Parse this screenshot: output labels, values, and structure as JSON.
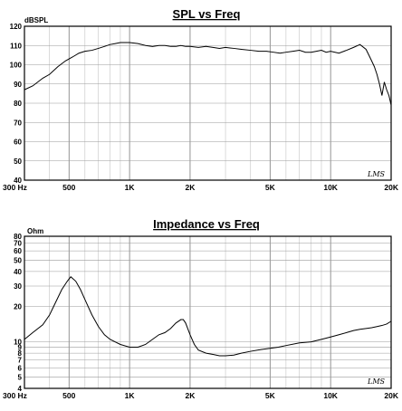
{
  "chart_data": [
    {
      "type": "line",
      "title": "SPL vs Freq",
      "ylabel": "dBSPL",
      "xlabel": "",
      "x_scale": "log",
      "xlim": [
        300,
        20000
      ],
      "ylim": [
        40,
        120
      ],
      "grid": true,
      "y_ticks": [
        40,
        50,
        60,
        70,
        80,
        90,
        100,
        110,
        120
      ],
      "x_tick_labels": [
        {
          "value": 300,
          "label": "300  Hz"
        },
        {
          "value": 500,
          "label": "500"
        },
        {
          "value": 1000,
          "label": "1K"
        },
        {
          "value": 2000,
          "label": "2K"
        },
        {
          "value": 5000,
          "label": "5K"
        },
        {
          "value": 10000,
          "label": "10K"
        },
        {
          "value": 20000,
          "label": "20K"
        }
      ],
      "watermark": "LMS",
      "series": [
        {
          "x": [
            300,
            330,
            370,
            400,
            440,
            480,
            520,
            560,
            600,
            650,
            700,
            750,
            800,
            850,
            900,
            950,
            1000,
            1100,
            1200,
            1300,
            1400,
            1500,
            1600,
            1700,
            1800,
            1900,
            2000,
            2200,
            2400,
            2600,
            2800,
            3000,
            3300,
            3600,
            4000,
            4400,
            4800,
            5200,
            5600,
            6000,
            6500,
            7000,
            7500,
            8000,
            8500,
            9000,
            9500,
            10000,
            11000,
            12000,
            13000,
            14000,
            15000,
            15500,
            16000,
            16500,
            17000,
            17500,
            18000,
            18500,
            19000,
            19500,
            20000
          ],
          "values": [
            87,
            89,
            93,
            95,
            99,
            102,
            104,
            106,
            107,
            107.5,
            108.5,
            109.5,
            110.5,
            111,
            111.5,
            111.5,
            111.5,
            111,
            110,
            109.5,
            110,
            110,
            109.5,
            109.5,
            110,
            109.5,
            109.5,
            109,
            109.5,
            109,
            108.5,
            109,
            108.5,
            108,
            107.5,
            107,
            107,
            106.5,
            106,
            106.5,
            107,
            107.5,
            106.5,
            106.5,
            107,
            107.5,
            106.5,
            107,
            106,
            107.5,
            109,
            110.5,
            108,
            105,
            102,
            99,
            95,
            90,
            84,
            91,
            87,
            84,
            79
          ]
        }
      ]
    },
    {
      "type": "line",
      "title": "Impedance vs Freq",
      "ylabel": "Ohm",
      "xlabel": "",
      "x_scale": "log",
      "y_scale": "log",
      "xlim": [
        300,
        20000
      ],
      "ylim": [
        4,
        80
      ],
      "grid": true,
      "y_ticks": [
        4,
        5,
        6,
        7,
        8,
        9,
        10,
        20,
        30,
        40,
        50,
        60,
        70,
        80
      ],
      "x_tick_labels": [
        {
          "value": 300,
          "label": "300  Hz"
        },
        {
          "value": 500,
          "label": "500"
        },
        {
          "value": 1000,
          "label": "1K"
        },
        {
          "value": 2000,
          "label": "2K"
        },
        {
          "value": 5000,
          "label": "5K"
        },
        {
          "value": 10000,
          "label": "10K"
        },
        {
          "value": 20000,
          "label": "20K"
        }
      ],
      "watermark": "LMS",
      "series": [
        {
          "x": [
            300,
            330,
            370,
            400,
            430,
            460,
            490,
            510,
            540,
            570,
            600,
            650,
            700,
            750,
            800,
            900,
            1000,
            1100,
            1200,
            1300,
            1400,
            1500,
            1600,
            1700,
            1800,
            1850,
            1900,
            2000,
            2100,
            2200,
            2400,
            2600,
            2800,
            3000,
            3300,
            3600,
            4000,
            4500,
            5000,
            5500,
            6000,
            7000,
            8000,
            9000,
            10000,
            11000,
            12000,
            13000,
            14000,
            15000,
            16000,
            17000,
            18000,
            19000,
            20000
          ],
          "values": [
            10.5,
            12,
            14,
            17,
            22,
            28,
            33,
            36,
            33,
            28,
            23,
            17,
            13.5,
            11.5,
            10.5,
            9.5,
            9,
            9,
            9.5,
            10.5,
            11.5,
            12,
            13,
            14.5,
            15.5,
            15.5,
            14.5,
            11.5,
            9.5,
            8.5,
            8,
            7.8,
            7.6,
            7.6,
            7.7,
            8,
            8.3,
            8.6,
            8.8,
            9,
            9.3,
            9.8,
            10,
            10.5,
            11,
            11.5,
            12,
            12.5,
            12.8,
            13,
            13.2,
            13.5,
            13.8,
            14.2,
            15
          ]
        }
      ]
    }
  ]
}
